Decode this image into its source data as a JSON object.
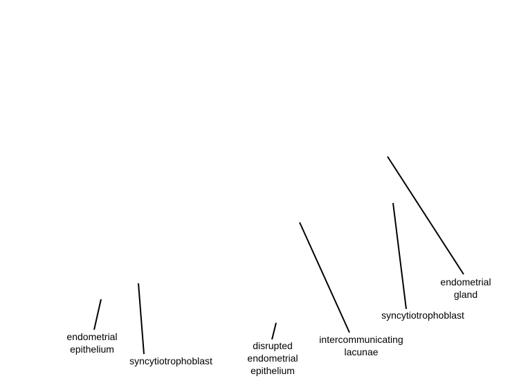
{
  "labels": {
    "endometrial_epithelium": [
      "endometrial",
      "epithelium"
    ],
    "syncytiotrophoblast_left": [
      "syncytiotrophoblast"
    ],
    "disrupted_endometrial_epithelium": [
      "disrupted",
      "endometrial",
      "epithelium"
    ],
    "intercommunicating_lacunae": [
      "intercommunicating",
      "lacunae"
    ],
    "syncytiotrophoblast_right": [
      "syncytiotrophoblast"
    ],
    "endometrial_gland": [
      "endometrial",
      "gland"
    ]
  },
  "colors": {
    "background": "#ffffff",
    "line": "#000000",
    "text": "#000000"
  }
}
